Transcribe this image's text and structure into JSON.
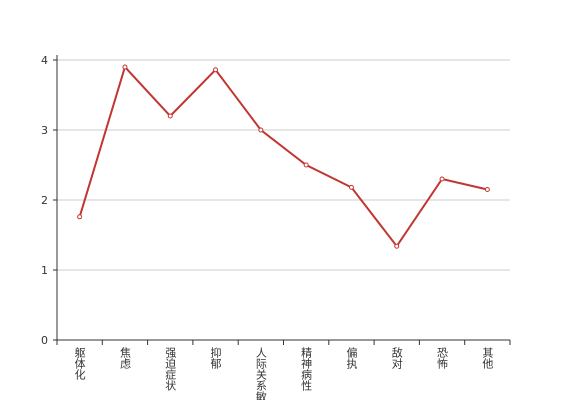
{
  "chart_data": {
    "type": "line",
    "categories": [
      "躯体化",
      "焦虑",
      "强迫症状",
      "抑郁",
      "人际关系敏感",
      "精神病性",
      "偏执",
      "敌对",
      "恐怖",
      "其他"
    ],
    "values": [
      1.76,
      3.9,
      3.2,
      3.86,
      3.0,
      2.5,
      2.18,
      1.34,
      2.3,
      2.15
    ],
    "color": "#c23531",
    "ylim": [
      0,
      4
    ],
    "yticks": [
      0,
      1,
      2,
      3,
      4
    ],
    "grid": true
  }
}
